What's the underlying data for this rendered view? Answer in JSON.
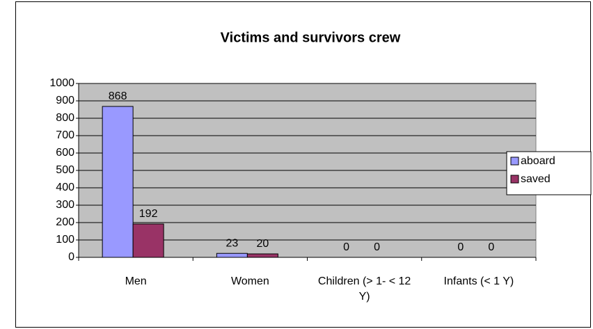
{
  "chart_data": {
    "type": "bar",
    "title": "Victims and survivors crew",
    "categories": [
      "Men",
      "Women",
      "Children (> 1- < 12 Y)",
      "Infants (< 1 Y)"
    ],
    "series": [
      {
        "name": "aboard",
        "color": "#9999ff",
        "values": [
          868,
          23,
          0,
          0
        ]
      },
      {
        "name": "saved",
        "color": "#993366",
        "values": [
          192,
          20,
          0,
          0
        ]
      }
    ],
    "ylim": [
      0,
      1000
    ],
    "yticks": [
      0,
      100,
      200,
      300,
      400,
      500,
      600,
      700,
      800,
      900,
      1000
    ],
    "grid": true,
    "legend": "right"
  }
}
